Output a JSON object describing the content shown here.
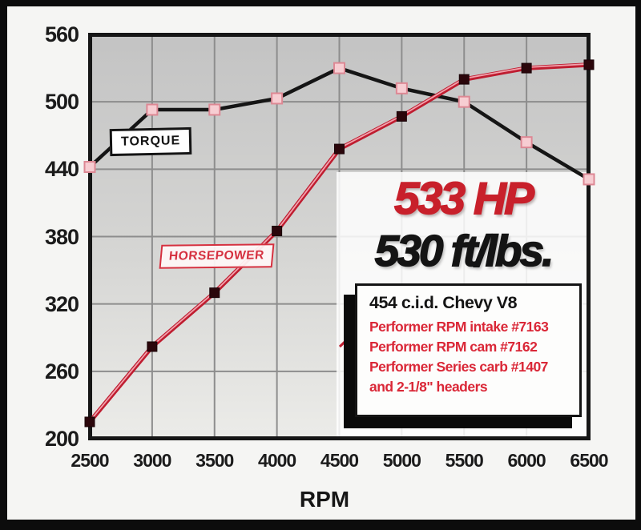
{
  "chart_data": {
    "type": "line",
    "title": "",
    "xlabel": "RPM",
    "ylabel": "",
    "x": [
      2500,
      3000,
      3500,
      4000,
      4500,
      5000,
      5500,
      6000,
      6500
    ],
    "xticks": [
      2500,
      3000,
      3500,
      4000,
      4500,
      5000,
      5500,
      6000,
      6500
    ],
    "yticks": [
      560,
      500,
      440,
      380,
      320,
      260,
      200
    ],
    "xlim": [
      2500,
      6500
    ],
    "ylim": [
      200,
      560
    ],
    "grid": true,
    "legend_position": "on-chart-callout-boxes",
    "series": [
      {
        "name": "TORQUE",
        "values": [
          442,
          493,
          493,
          503,
          530,
          512,
          500,
          464,
          431
        ],
        "line_color": "#151515",
        "marker": "square",
        "marker_fill": "#f7cdd2",
        "marker_border": "#dd8894"
      },
      {
        "name": "HORSEPOWER",
        "values": [
          215,
          282,
          330,
          385,
          458,
          487,
          520,
          530,
          533
        ],
        "line_color": "#bf1d30",
        "line_highlight": "#f2a2ad",
        "marker": "square",
        "marker_fill": "#2b060b",
        "marker_border": "#1a0307"
      }
    ]
  },
  "labels": {
    "torque_box": "TORQUE",
    "horsepower_box": "HORSEPOWER"
  },
  "callout": {
    "hp_headline": "533 HP",
    "tq_headline": "530 ft/lbs."
  },
  "info_box": {
    "title": "454 c.i.d. Chevy V8",
    "lines": [
      "Performer RPM intake #7163",
      "Performer RPM cam #7162",
      "Performer Series carb #1407",
      "and 2-1/8\" headers"
    ]
  },
  "colors": {
    "frame": "#0c0c0c",
    "page_background": "#f5f5f3",
    "plot_gradient_top": "#c3c3c3",
    "plot_gradient_bottom": "#ecece9",
    "gridline": "#8d8d8d",
    "plot_border": "#161616",
    "headline_red": "#c8202b",
    "info_red": "#da2737"
  }
}
